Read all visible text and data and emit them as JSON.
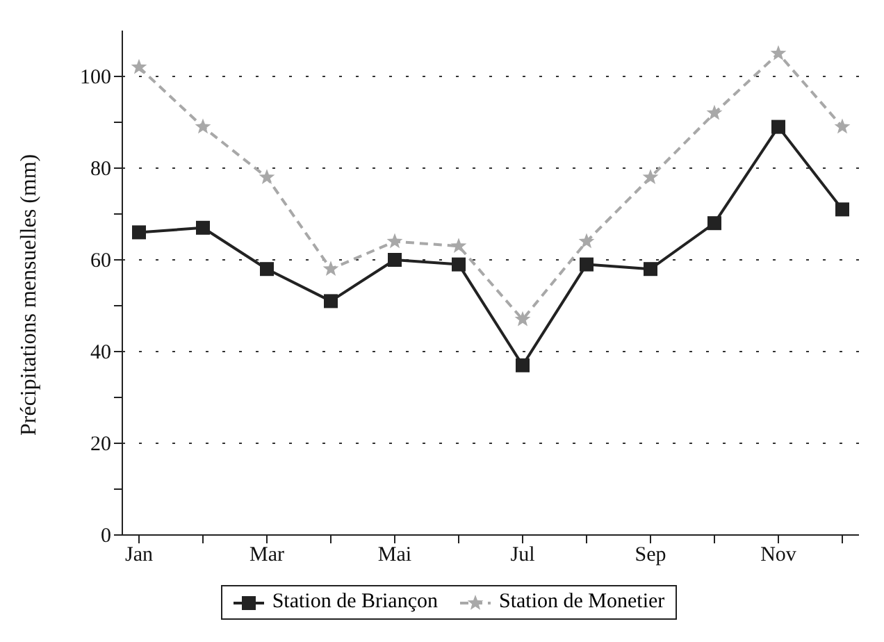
{
  "chart_data": {
    "type": "line",
    "ylabel": "Précipitations mensuelles (mm)",
    "categories": [
      "Jan",
      null,
      "Mar",
      null,
      "Mai",
      null,
      "Jul",
      null,
      "Sep",
      null,
      "Nov",
      null
    ],
    "series": [
      {
        "name": "Station de Briançon",
        "color": "#222222",
        "marker": "square",
        "line_style": "solid",
        "values": [
          66,
          67,
          58,
          51,
          60,
          59,
          37,
          59,
          58,
          68,
          89,
          71
        ]
      },
      {
        "name": "Station de Monetier",
        "color": "#a8a8a8",
        "marker": "star",
        "line_style": "dashed",
        "values": [
          102,
          89,
          78,
          58,
          64,
          63,
          47,
          64,
          78,
          92,
          105,
          89
        ]
      }
    ],
    "ylim": [
      0,
      110
    ],
    "yticks": [
      0,
      {
        "value": 10,
        "label": null
      },
      20,
      {
        "value": 30,
        "label": null
      },
      40,
      {
        "value": 50,
        "label": null
      },
      60,
      {
        "value": 70,
        "label": null
      },
      80,
      {
        "value": 90,
        "label": null
      },
      100
    ],
    "grid": "y",
    "legend": "bottom"
  }
}
